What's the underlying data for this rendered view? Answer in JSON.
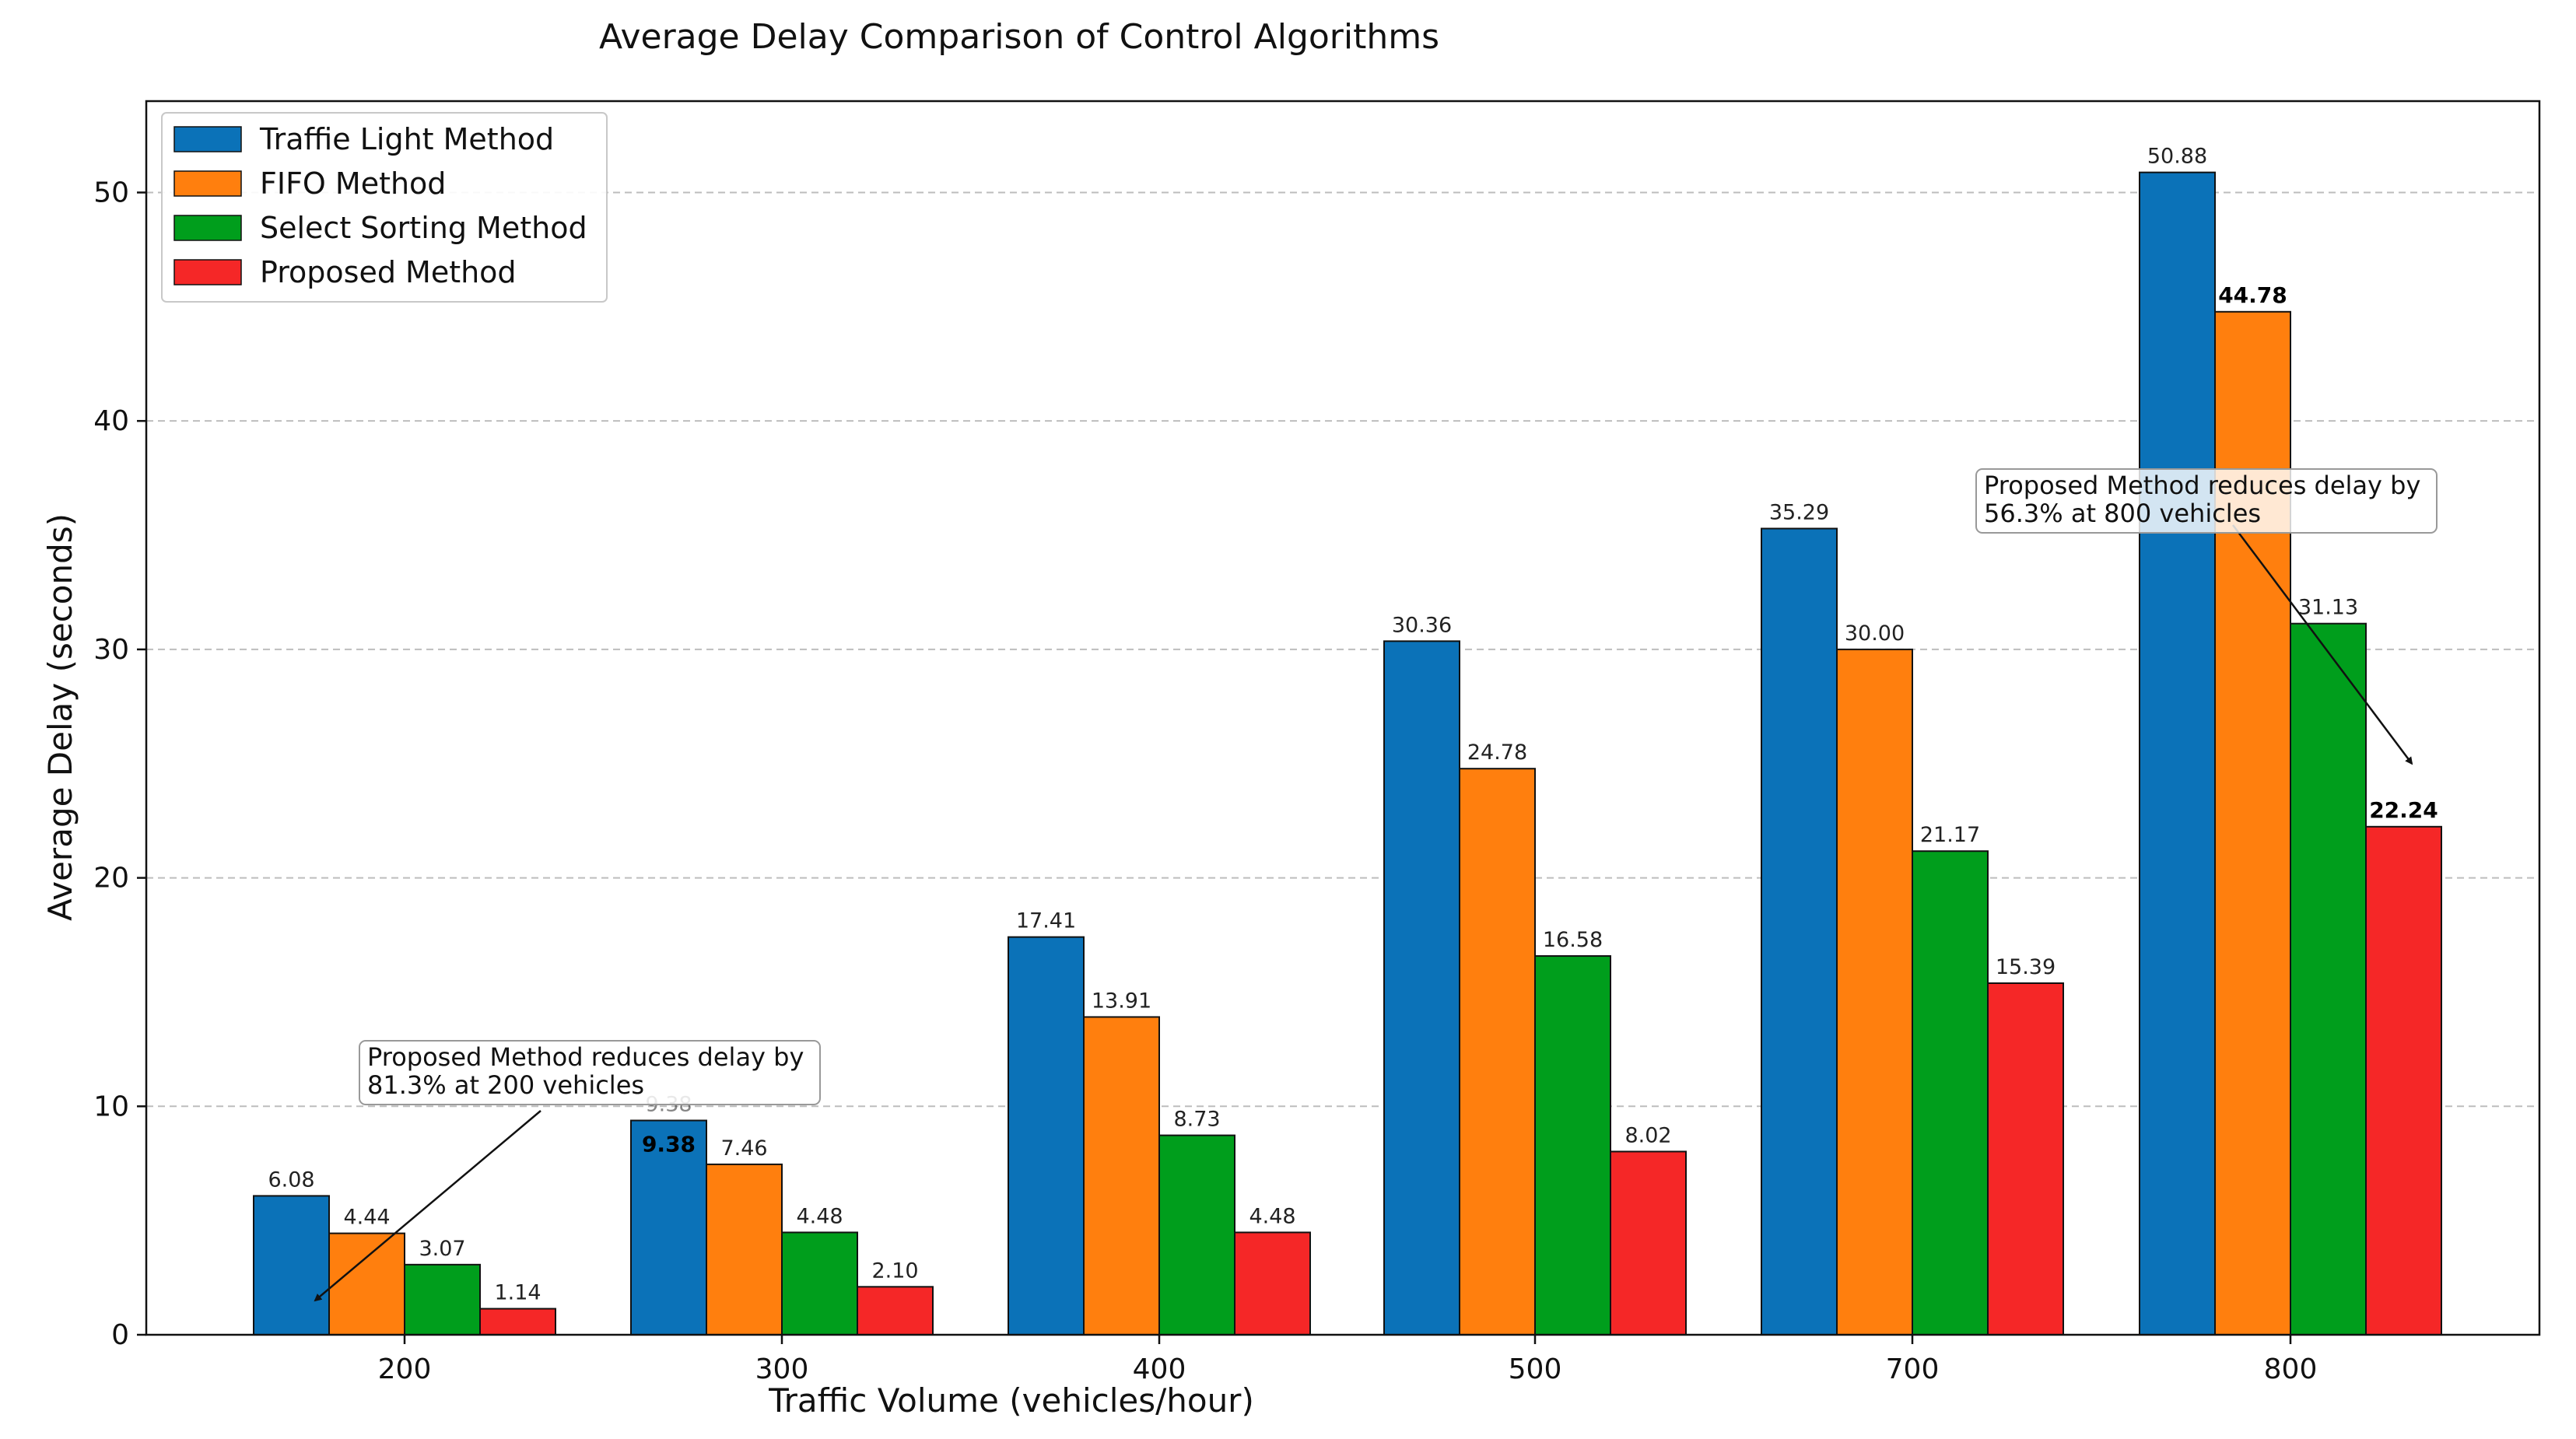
{
  "chart_data": {
    "type": "bar",
    "title": "Average Delay Comparison of Control Algorithms",
    "xlabel": "Traffic Volume (vehicles/hour)",
    "ylabel": "Average Delay (seconds)",
    "categories": [
      "200",
      "300",
      "400",
      "500",
      "700",
      "800"
    ],
    "ylim": [
      0,
      54
    ],
    "yticks": [
      0,
      10,
      20,
      30,
      40,
      50
    ],
    "grid": "horizontal dashed",
    "legend_position": "top-left",
    "series": [
      {
        "name": "Traffie Light Method",
        "color": "#0b72b8",
        "values": [
          6.08,
          9.38,
          17.41,
          30.36,
          35.29,
          50.88
        ],
        "labels": [
          "6.08",
          "9.38",
          "17.41",
          "30.36",
          "35.29",
          "50.88"
        ]
      },
      {
        "name": "FIFO Method",
        "color": "#ff7f0e",
        "values": [
          4.44,
          7.46,
          13.91,
          24.78,
          30.0,
          44.78
        ],
        "labels": [
          "4.44",
          "7.46",
          "13.91",
          "24.78",
          "30.00",
          "44.78"
        ]
      },
      {
        "name": "Select Sorting Method",
        "color": "#009e1c",
        "values": [
          3.07,
          4.48,
          8.73,
          16.58,
          21.17,
          31.13
        ],
        "labels": [
          "3.07",
          "4.48",
          "8.73",
          "16.58",
          "21.17",
          "31.13"
        ]
      },
      {
        "name": "Proposed Method",
        "color": "#f52727",
        "values": [
          1.14,
          2.1,
          4.48,
          8.02,
          15.39,
          22.24
        ],
        "labels": [
          "1.14",
          "2.10",
          "4.48",
          "8.02",
          "15.39",
          "22.24"
        ]
      }
    ],
    "bold_labels": [
      {
        "category": "300",
        "series": "Traffie Light Method",
        "label": "9.38",
        "inside_bar": true
      },
      {
        "category": "800",
        "series": "FIFO Method",
        "label": "44.78"
      },
      {
        "category": "800",
        "series": "Proposed Method",
        "label": "22.24"
      }
    ],
    "annotations": [
      {
        "lines": [
          "Proposed Method reduces delay by",
          "81.3% at 200 vehicles"
        ],
        "target": {
          "category": "200",
          "value": 1.5
        },
        "text_anchor": {
          "category": "300",
          "value": 11.5
        }
      },
      {
        "lines": [
          "Proposed Method reduces delay by",
          "56.3% at 800 vehicles"
        ],
        "target": {
          "category": "800",
          "value": 25.0
        },
        "text_anchor": {
          "category": "800",
          "value": 36.5
        }
      }
    ]
  }
}
